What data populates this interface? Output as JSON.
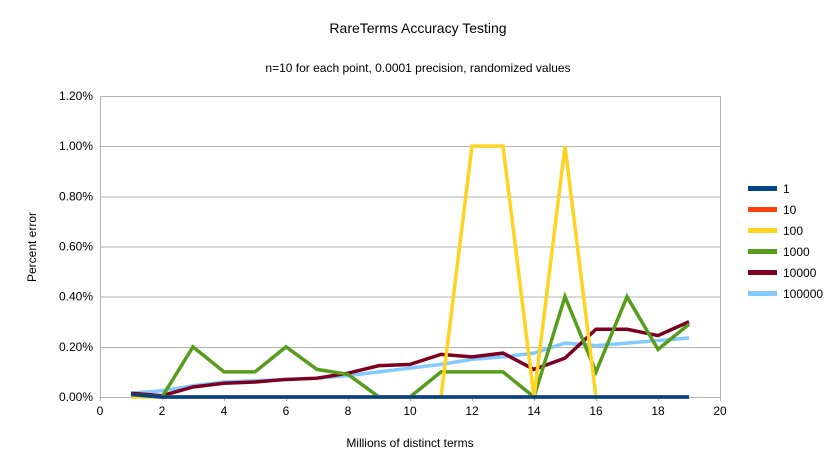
{
  "chart_data": {
    "type": "line",
    "title": "RareTerms Accuracy Testing",
    "subtitle": "n=10 for each point, 0.0001 precision, randomized values",
    "xlabel": "Millions of distinct terms",
    "ylabel": "Percent error",
    "xlim": [
      0,
      20
    ],
    "ylim": [
      0,
      1.2
    ],
    "x_ticks": [
      0,
      2,
      4,
      6,
      8,
      10,
      12,
      14,
      16,
      18,
      20
    ],
    "y_ticks": [
      0,
      0.2,
      0.4,
      0.6,
      0.8,
      1.0,
      1.2
    ],
    "y_tick_labels": [
      "0.00%",
      "0.20%",
      "0.40%",
      "0.60%",
      "0.80%",
      "1.00%",
      "1.20%"
    ],
    "grid": true,
    "legend_position": "right",
    "draw_order": "first series on top",
    "x": [
      1,
      2,
      3,
      4,
      5,
      6,
      7,
      8,
      9,
      10,
      11,
      12,
      13,
      14,
      15,
      16,
      17,
      18,
      19
    ],
    "series": [
      {
        "name": "1",
        "color": "#004586",
        "values": [
          0.01,
          0,
          0,
          0,
          0,
          0,
          0,
          0,
          0,
          0,
          0,
          0,
          0,
          0,
          0,
          0,
          0,
          0,
          0
        ]
      },
      {
        "name": "10",
        "color": "#FF420E",
        "values": [
          0.01,
          0,
          0,
          0,
          0,
          0,
          0,
          0,
          0,
          0,
          0,
          0,
          0,
          0,
          0,
          0,
          0,
          0,
          0
        ]
      },
      {
        "name": "100",
        "color": "#FFD320",
        "values": [
          0,
          0,
          0,
          0,
          0,
          0,
          0,
          0,
          0,
          0,
          0,
          1.0,
          1.0,
          0,
          1.0,
          0,
          0,
          0,
          0
        ]
      },
      {
        "name": "1000",
        "color": "#579D1C",
        "values": [
          0.01,
          0,
          0.2,
          0.1,
          0.1,
          0.2,
          0.11,
          0.09,
          0,
          0,
          0.1,
          0.1,
          0.1,
          0,
          0.4,
          0.1,
          0.4,
          0.19,
          0.29
        ]
      },
      {
        "name": "10000",
        "color": "#7E0021",
        "values": [
          0.015,
          0.005,
          0.04,
          0.055,
          0.06,
          0.07,
          0.075,
          0.095,
          0.125,
          0.13,
          0.17,
          0.16,
          0.175,
          0.11,
          0.155,
          0.27,
          0.27,
          0.245,
          0.3
        ]
      },
      {
        "name": "100000",
        "color": "#83CAFF",
        "values": [
          0.015,
          0.025,
          0.045,
          0.06,
          0.065,
          0.07,
          0.075,
          0.085,
          0.1,
          0.115,
          0.13,
          0.15,
          0.16,
          0.175,
          0.215,
          0.205,
          0.215,
          0.225,
          0.235
        ]
      }
    ]
  },
  "style_colors": {
    "grid": "#b3b3b3",
    "axis": "#b3b3b3",
    "text": "#000000",
    "background": "#ffffff"
  }
}
